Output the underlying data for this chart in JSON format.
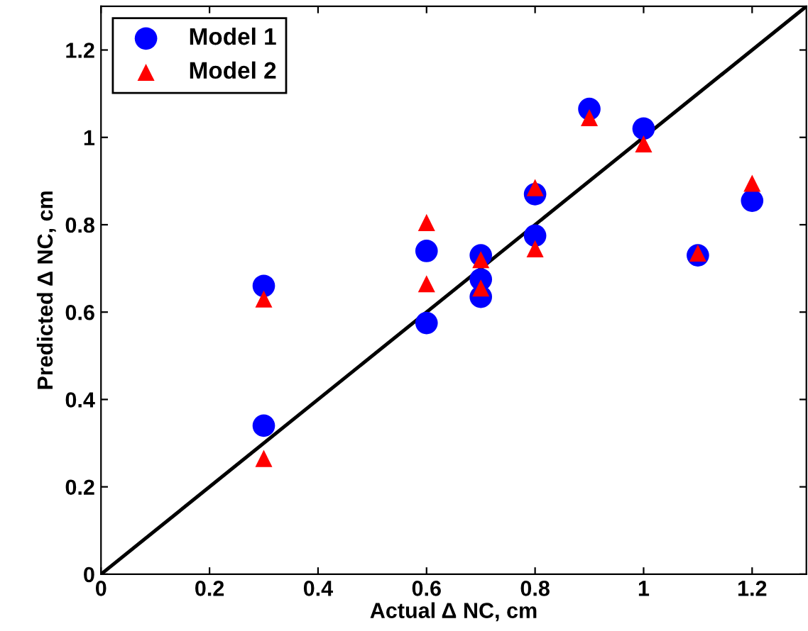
{
  "chart_data": {
    "type": "scatter",
    "xlabel": "Actual Δ NC, cm",
    "ylabel": "Predicted Δ NC, cm",
    "xlim": [
      0,
      1.3
    ],
    "ylim": [
      0,
      1.3
    ],
    "xticks": [
      0,
      0.2,
      0.4,
      0.6,
      0.8,
      1,
      1.2
    ],
    "yticks": [
      0,
      0.2,
      0.4,
      0.6,
      0.8,
      1,
      1.2
    ],
    "grid": false,
    "legend": "top left",
    "series": [
      {
        "name": "Model 1",
        "color": "#0000ff",
        "marker": "circle",
        "x": [
          0.3,
          0.3,
          0.6,
          0.6,
          0.7,
          0.7,
          0.7,
          0.8,
          0.8,
          0.9,
          1.0,
          1.1,
          1.2
        ],
        "values": [
          0.66,
          0.34,
          0.74,
          0.575,
          0.73,
          0.675,
          0.635,
          0.775,
          0.87,
          1.065,
          1.02,
          0.73,
          0.855
        ]
      },
      {
        "name": "Model 2",
        "color": "#ff0000",
        "marker": "triangle",
        "x": [
          0.3,
          0.3,
          0.6,
          0.6,
          0.7,
          0.7,
          0.8,
          0.8,
          0.9,
          1.0,
          1.1,
          1.2
        ],
        "values": [
          0.63,
          0.265,
          0.805,
          0.665,
          0.72,
          0.655,
          0.885,
          0.745,
          1.045,
          0.985,
          0.735,
          0.895
        ]
      },
      {
        "type": "line",
        "color": "#000000",
        "marker": "none",
        "x": [
          0,
          1.3
        ],
        "values": [
          0,
          1.3
        ]
      }
    ]
  }
}
